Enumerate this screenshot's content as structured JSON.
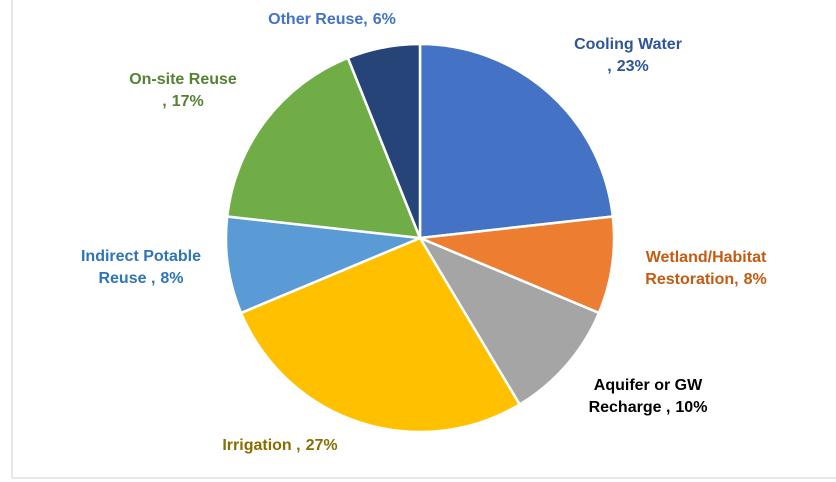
{
  "chart_data": {
    "type": "pie",
    "categories": [
      "Cooling Water ,",
      "Wetland/Habitat Restoration,",
      "Aquifer or GW Recharge ,",
      "Irrigation ,",
      "Indirect Potable Reuse ,",
      "On-site Reuse ,",
      "Other Reuse,"
    ],
    "values": [
      23,
      8,
      10,
      27,
      8,
      17,
      6
    ],
    "value_labels": [
      "23%",
      "8%",
      "10%",
      "27%",
      "8%",
      "17%",
      "6%"
    ],
    "colors": [
      "#4472c4",
      "#ed7d31",
      "#a5a5a5",
      "#ffc000",
      "#5b9bd5",
      "#70ad47",
      "#264478"
    ],
    "label_colors": [
      "#2f5597",
      "#c55a11",
      "#000000",
      "#8a6d00",
      "#2e75b6",
      "#548235",
      "#4472c4"
    ]
  }
}
